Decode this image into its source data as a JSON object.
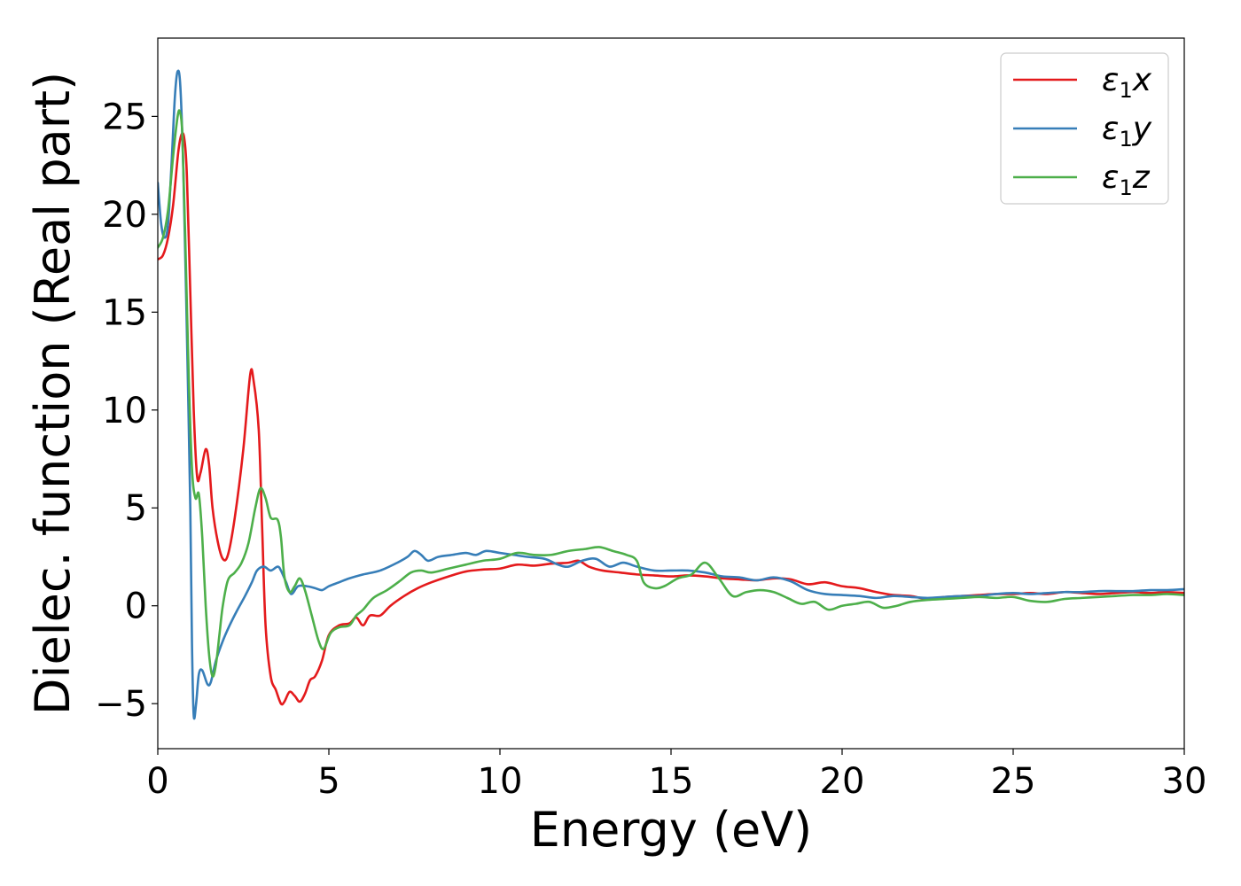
{
  "chart_data": {
    "type": "line",
    "title": "",
    "xlabel": "Energy (eV)",
    "ylabel": "Dielec. function (Real part)",
    "xlim": [
      0,
      30
    ],
    "ylim": [
      -7.3,
      29
    ],
    "xticks": [
      0,
      5,
      10,
      15,
      20,
      25,
      30
    ],
    "yticks": [
      -5,
      0,
      5,
      10,
      15,
      20,
      25
    ],
    "xtick_labels": [
      "0",
      "5",
      "10",
      "15",
      "20",
      "25",
      "30"
    ],
    "ytick_labels": [
      "−5",
      "0",
      "5",
      "10",
      "15",
      "20",
      "25"
    ],
    "grid": false,
    "legend_position": "top-right",
    "series": [
      {
        "name": "ε1x",
        "legend": {
          "symbol": "ε",
          "sub": "1",
          "var": "x"
        },
        "color": "#e41a1c",
        "points": [
          [
            0,
            17.7
          ],
          [
            0.15,
            17.9
          ],
          [
            0.3,
            18.8
          ],
          [
            0.45,
            20.5
          ],
          [
            0.6,
            23.2
          ],
          [
            0.7,
            24.1
          ],
          [
            0.78,
            23.8
          ],
          [
            0.85,
            22
          ],
          [
            0.95,
            16
          ],
          [
            1.05,
            10
          ],
          [
            1.15,
            6.6
          ],
          [
            1.25,
            6.8
          ],
          [
            1.4,
            8.0
          ],
          [
            1.5,
            7.2
          ],
          [
            1.6,
            5
          ],
          [
            1.75,
            3.3
          ],
          [
            1.9,
            2.4
          ],
          [
            2.05,
            2.6
          ],
          [
            2.25,
            4.5
          ],
          [
            2.5,
            8
          ],
          [
            2.7,
            11.8
          ],
          [
            2.8,
            11.5
          ],
          [
            2.95,
            9
          ],
          [
            3.05,
            4
          ],
          [
            3.15,
            -1
          ],
          [
            3.3,
            -3.6
          ],
          [
            3.45,
            -4.3
          ],
          [
            3.6,
            -5.0
          ],
          [
            3.7,
            -4.9
          ],
          [
            3.85,
            -4.4
          ],
          [
            4.0,
            -4.6
          ],
          [
            4.15,
            -4.9
          ],
          [
            4.3,
            -4.5
          ],
          [
            4.45,
            -3.8
          ],
          [
            4.6,
            -3.6
          ],
          [
            4.8,
            -2.8
          ],
          [
            5.0,
            -1.5
          ],
          [
            5.3,
            -1.0
          ],
          [
            5.6,
            -0.9
          ],
          [
            5.8,
            -0.6
          ],
          [
            6.0,
            -1.0
          ],
          [
            6.2,
            -0.5
          ],
          [
            6.5,
            -0.5
          ],
          [
            6.8,
            0
          ],
          [
            7.2,
            0.5
          ],
          [
            7.6,
            0.9
          ],
          [
            8.0,
            1.2
          ],
          [
            8.5,
            1.5
          ],
          [
            9.0,
            1.75
          ],
          [
            9.5,
            1.85
          ],
          [
            10.0,
            1.9
          ],
          [
            10.5,
            2.1
          ],
          [
            11.0,
            2.05
          ],
          [
            11.5,
            2.15
          ],
          [
            12.0,
            2.2
          ],
          [
            12.3,
            2.3
          ],
          [
            12.6,
            2.0
          ],
          [
            13.0,
            1.8
          ],
          [
            13.5,
            1.7
          ],
          [
            14.0,
            1.6
          ],
          [
            14.5,
            1.55
          ],
          [
            15.0,
            1.5
          ],
          [
            15.5,
            1.55
          ],
          [
            16.0,
            1.5
          ],
          [
            16.5,
            1.4
          ],
          [
            17.0,
            1.35
          ],
          [
            17.5,
            1.3
          ],
          [
            18.0,
            1.4
          ],
          [
            18.5,
            1.35
          ],
          [
            19.0,
            1.1
          ],
          [
            19.5,
            1.2
          ],
          [
            20.0,
            1.0
          ],
          [
            20.5,
            0.9
          ],
          [
            21.0,
            0.7
          ],
          [
            21.5,
            0.55
          ],
          [
            22.0,
            0.5
          ],
          [
            22.5,
            0.35
          ],
          [
            23.0,
            0.45
          ],
          [
            23.5,
            0.5
          ],
          [
            24.0,
            0.55
          ],
          [
            24.5,
            0.6
          ],
          [
            25.0,
            0.6
          ],
          [
            25.5,
            0.65
          ],
          [
            26.0,
            0.6
          ],
          [
            26.5,
            0.7
          ],
          [
            27.0,
            0.65
          ],
          [
            27.5,
            0.6
          ],
          [
            28.0,
            0.65
          ],
          [
            28.5,
            0.7
          ],
          [
            29.0,
            0.65
          ],
          [
            29.5,
            0.7
          ],
          [
            30.0,
            0.65
          ]
        ]
      },
      {
        "name": "ε1y",
        "legend": {
          "symbol": "ε",
          "sub": "1",
          "var": "y"
        },
        "color": "#377eb8",
        "points": [
          [
            0,
            21.6
          ],
          [
            0.1,
            19.5
          ],
          [
            0.2,
            18.8
          ],
          [
            0.3,
            19.5
          ],
          [
            0.4,
            22.5
          ],
          [
            0.5,
            26
          ],
          [
            0.58,
            27.3
          ],
          [
            0.66,
            26.5
          ],
          [
            0.75,
            22
          ],
          [
            0.85,
            14
          ],
          [
            0.95,
            5
          ],
          [
            1.0,
            -2
          ],
          [
            1.05,
            -5.6
          ],
          [
            1.12,
            -5
          ],
          [
            1.2,
            -3.5
          ],
          [
            1.3,
            -3.3
          ],
          [
            1.45,
            -4.0
          ],
          [
            1.55,
            -3.9
          ],
          [
            1.7,
            -2.8
          ],
          [
            1.9,
            -1.8
          ],
          [
            2.1,
            -1.0
          ],
          [
            2.3,
            -0.3
          ],
          [
            2.55,
            0.5
          ],
          [
            2.75,
            1.2
          ],
          [
            2.9,
            1.8
          ],
          [
            3.1,
            2.0
          ],
          [
            3.3,
            1.8
          ],
          [
            3.5,
            2.0
          ],
          [
            3.6,
            1.8
          ],
          [
            3.75,
            1.2
          ],
          [
            3.9,
            0.6
          ],
          [
            4.1,
            1.0
          ],
          [
            4.35,
            1.0
          ],
          [
            4.6,
            0.9
          ],
          [
            4.8,
            0.8
          ],
          [
            5.0,
            1.0
          ],
          [
            5.3,
            1.2
          ],
          [
            5.6,
            1.4
          ],
          [
            6.0,
            1.6
          ],
          [
            6.5,
            1.8
          ],
          [
            7.0,
            2.2
          ],
          [
            7.3,
            2.5
          ],
          [
            7.5,
            2.8
          ],
          [
            7.7,
            2.6
          ],
          [
            7.9,
            2.3
          ],
          [
            8.2,
            2.5
          ],
          [
            8.6,
            2.6
          ],
          [
            9.0,
            2.7
          ],
          [
            9.3,
            2.6
          ],
          [
            9.6,
            2.8
          ],
          [
            10.0,
            2.7
          ],
          [
            10.4,
            2.6
          ],
          [
            10.8,
            2.5
          ],
          [
            11.3,
            2.4
          ],
          [
            11.7,
            2.1
          ],
          [
            12.0,
            2.0
          ],
          [
            12.4,
            2.3
          ],
          [
            12.8,
            2.4
          ],
          [
            13.2,
            2.0
          ],
          [
            13.6,
            2.2
          ],
          [
            14.0,
            2.0
          ],
          [
            14.5,
            1.8
          ],
          [
            15.0,
            1.8
          ],
          [
            15.5,
            1.8
          ],
          [
            16.0,
            1.7
          ],
          [
            16.5,
            1.5
          ],
          [
            17.0,
            1.45
          ],
          [
            17.5,
            1.3
          ],
          [
            18.0,
            1.45
          ],
          [
            18.5,
            1.25
          ],
          [
            19.0,
            0.8
          ],
          [
            19.5,
            0.6
          ],
          [
            20.0,
            0.55
          ],
          [
            20.5,
            0.5
          ],
          [
            21.0,
            0.4
          ],
          [
            21.5,
            0.5
          ],
          [
            22.0,
            0.45
          ],
          [
            22.5,
            0.4
          ],
          [
            23.0,
            0.45
          ],
          [
            23.5,
            0.5
          ],
          [
            24.0,
            0.5
          ],
          [
            24.5,
            0.6
          ],
          [
            25.0,
            0.65
          ],
          [
            25.5,
            0.6
          ],
          [
            26.0,
            0.65
          ],
          [
            26.5,
            0.7
          ],
          [
            27.0,
            0.7
          ],
          [
            27.5,
            0.75
          ],
          [
            28.0,
            0.75
          ],
          [
            28.5,
            0.75
          ],
          [
            29.0,
            0.8
          ],
          [
            29.5,
            0.8
          ],
          [
            30.0,
            0.85
          ]
        ]
      },
      {
        "name": "ε1z",
        "legend": {
          "symbol": "ε",
          "sub": "1",
          "var": "z"
        },
        "color": "#4daf4a",
        "points": [
          [
            0,
            18.3
          ],
          [
            0.15,
            18.8
          ],
          [
            0.3,
            20.2
          ],
          [
            0.45,
            23.0
          ],
          [
            0.58,
            25.0
          ],
          [
            0.65,
            25.2
          ],
          [
            0.72,
            24
          ],
          [
            0.8,
            19
          ],
          [
            0.9,
            12
          ],
          [
            1.0,
            7
          ],
          [
            1.1,
            5.5
          ],
          [
            1.2,
            5.7
          ],
          [
            1.3,
            3.5
          ],
          [
            1.4,
            0
          ],
          [
            1.5,
            -2.5
          ],
          [
            1.6,
            -3.6
          ],
          [
            1.7,
            -3.0
          ],
          [
            1.8,
            -1.5
          ],
          [
            1.9,
            0
          ],
          [
            2.05,
            1.3
          ],
          [
            2.25,
            1.7
          ],
          [
            2.45,
            2.2
          ],
          [
            2.65,
            3.2
          ],
          [
            2.85,
            5.0
          ],
          [
            3.0,
            6.0
          ],
          [
            3.15,
            5.5
          ],
          [
            3.3,
            4.5
          ],
          [
            3.5,
            4.4
          ],
          [
            3.6,
            3.5
          ],
          [
            3.7,
            1.5
          ],
          [
            3.85,
            0.7
          ],
          [
            4.0,
            1.0
          ],
          [
            4.15,
            1.4
          ],
          [
            4.3,
            0.8
          ],
          [
            4.5,
            -0.5
          ],
          [
            4.7,
            -1.8
          ],
          [
            4.85,
            -2.2
          ],
          [
            5.05,
            -1.4
          ],
          [
            5.3,
            -1.1
          ],
          [
            5.6,
            -1.0
          ],
          [
            5.8,
            -0.5
          ],
          [
            6.0,
            -0.2
          ],
          [
            6.3,
            0.4
          ],
          [
            6.7,
            0.8
          ],
          [
            7.1,
            1.3
          ],
          [
            7.4,
            1.7
          ],
          [
            7.7,
            1.8
          ],
          [
            8.0,
            1.7
          ],
          [
            8.5,
            1.9
          ],
          [
            9.0,
            2.1
          ],
          [
            9.5,
            2.3
          ],
          [
            10.0,
            2.4
          ],
          [
            10.5,
            2.7
          ],
          [
            11.0,
            2.6
          ],
          [
            11.5,
            2.6
          ],
          [
            12.0,
            2.8
          ],
          [
            12.5,
            2.9
          ],
          [
            12.9,
            3.0
          ],
          [
            13.3,
            2.8
          ],
          [
            13.7,
            2.6
          ],
          [
            14.0,
            2.3
          ],
          [
            14.2,
            1.2
          ],
          [
            14.5,
            0.9
          ],
          [
            14.8,
            1.0
          ],
          [
            15.2,
            1.4
          ],
          [
            15.6,
            1.6
          ],
          [
            16.0,
            2.2
          ],
          [
            16.4,
            1.4
          ],
          [
            16.8,
            0.5
          ],
          [
            17.2,
            0.7
          ],
          [
            17.6,
            0.8
          ],
          [
            18.0,
            0.7
          ],
          [
            18.4,
            0.4
          ],
          [
            18.8,
            0.1
          ],
          [
            19.2,
            0.2
          ],
          [
            19.6,
            -0.2
          ],
          [
            20.0,
            0
          ],
          [
            20.4,
            0.1
          ],
          [
            20.8,
            0.2
          ],
          [
            21.2,
            -0.1
          ],
          [
            21.6,
            0
          ],
          [
            22.0,
            0.2
          ],
          [
            22.5,
            0.3
          ],
          [
            23.0,
            0.35
          ],
          [
            23.5,
            0.4
          ],
          [
            24.0,
            0.45
          ],
          [
            24.5,
            0.4
          ],
          [
            25.0,
            0.45
          ],
          [
            25.5,
            0.25
          ],
          [
            26.0,
            0.2
          ],
          [
            26.5,
            0.35
          ],
          [
            27.0,
            0.4
          ],
          [
            27.5,
            0.45
          ],
          [
            28.0,
            0.5
          ],
          [
            28.5,
            0.55
          ],
          [
            29.0,
            0.55
          ],
          [
            29.5,
            0.6
          ],
          [
            30.0,
            0.55
          ]
        ]
      }
    ]
  }
}
